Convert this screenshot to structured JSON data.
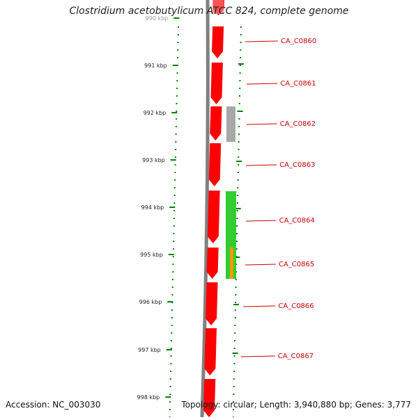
{
  "title": "Clostridium acetobutylicum ATCC 824, complete genome",
  "footer": {
    "accession": "Accession: NC_003030",
    "summary": "Topology: circular; Length: 3,940,880 bp; Genes: 3,777"
  },
  "scale": {
    "ticks": [
      "990 kbp",
      "991 kbp",
      "992 kbp",
      "993 kbp",
      "994 kbp",
      "995 kbp",
      "996 kbp",
      "997 kbp",
      "998 kbp"
    ]
  },
  "colors": {
    "cds_forward": "#ff0000",
    "backbone": "#808080",
    "tick_green": "#008000",
    "feature_gray": "#a8a8a8",
    "feature_green": "#33cc33",
    "feature_orange": "#ff9900",
    "gene_label": "#cc0000"
  },
  "genes": [
    {
      "label": "CA_C0860"
    },
    {
      "label": "CA_C0861"
    },
    {
      "label": "CA_C0862"
    },
    {
      "label": "CA_C0863"
    },
    {
      "label": "CA_C0864"
    },
    {
      "label": "CA_C0865"
    },
    {
      "label": "CA_C0866"
    },
    {
      "label": "CA_C0867"
    }
  ]
}
